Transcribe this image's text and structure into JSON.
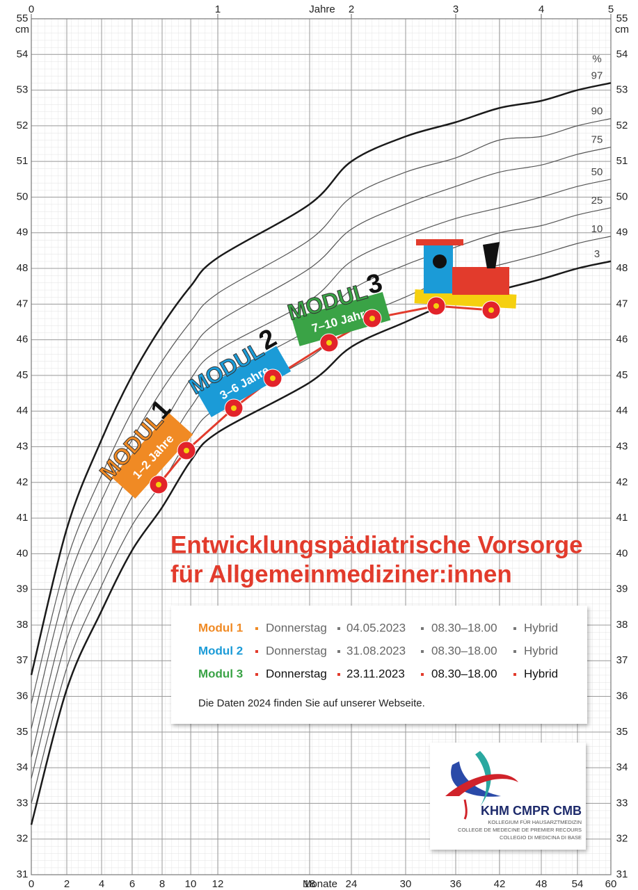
{
  "chart_data": {
    "type": "line",
    "x": [
      0,
      2,
      4,
      6,
      8,
      10,
      12,
      18,
      24,
      30,
      36,
      42,
      48,
      54,
      60
    ],
    "xlim": [
      0,
      60
    ],
    "xticks": [
      0,
      2,
      4,
      6,
      8,
      10,
      12,
      18,
      24,
      30,
      36,
      42,
      48,
      54,
      60
    ],
    "xlabel": "Monate",
    "x2lim": [
      0,
      5
    ],
    "x2ticks": [
      0,
      1,
      2,
      3,
      4,
      5
    ],
    "x2label": "Jahre",
    "ylim": [
      31,
      55
    ],
    "yticks": [
      31,
      32,
      33,
      34,
      35,
      36,
      37,
      38,
      39,
      40,
      41,
      42,
      43,
      44,
      45,
      46,
      47,
      48,
      49,
      50,
      51,
      52,
      53,
      54,
      55
    ],
    "yunit": "cm",
    "percent_label": "%",
    "grid": true,
    "series": [
      {
        "name": "3",
        "color": "#1a1a1a",
        "width": 2.5,
        "values": [
          32.4,
          36.2,
          38.4,
          40.1,
          41.3,
          42.6,
          43.4,
          44.8,
          45.8,
          46.5,
          47.1,
          47.4,
          47.7,
          48.0,
          48.2
        ]
      },
      {
        "name": "10",
        "color": "#555555",
        "width": 1.2,
        "values": [
          33.0,
          36.8,
          39.1,
          40.8,
          42.0,
          43.3,
          44.1,
          45.5,
          46.5,
          47.2,
          47.8,
          48.1,
          48.4,
          48.7,
          48.9
        ]
      },
      {
        "name": "25",
        "color": "#555555",
        "width": 1.2,
        "values": [
          33.7,
          37.6,
          39.8,
          41.6,
          42.8,
          44.1,
          44.9,
          46.3,
          47.4,
          48.1,
          48.6,
          49.0,
          49.2,
          49.5,
          49.7
        ]
      },
      {
        "name": "50",
        "color": "#555555",
        "width": 1.2,
        "values": [
          34.3,
          38.3,
          40.6,
          42.4,
          43.6,
          44.9,
          45.7,
          47.1,
          48.2,
          48.9,
          49.4,
          49.7,
          50.0,
          50.3,
          50.5
        ]
      },
      {
        "name": "75",
        "color": "#555555",
        "width": 1.2,
        "values": [
          35.1,
          39.1,
          41.5,
          43.2,
          44.6,
          45.7,
          46.5,
          48.0,
          49.1,
          49.8,
          50.3,
          50.7,
          50.9,
          51.2,
          51.4
        ]
      },
      {
        "name": "90",
        "color": "#555555",
        "width": 1.2,
        "values": [
          35.8,
          39.8,
          42.2,
          44.0,
          45.4,
          46.5,
          47.3,
          48.8,
          50.0,
          50.7,
          51.1,
          51.6,
          51.7,
          52.0,
          52.2
        ]
      },
      {
        "name": "97",
        "color": "#1a1a1a",
        "width": 2.5,
        "values": [
          36.6,
          40.7,
          43.2,
          45.0,
          46.4,
          47.5,
          48.3,
          49.8,
          51.0,
          51.7,
          52.1,
          52.5,
          52.7,
          53.0,
          53.2
        ]
      }
    ]
  },
  "train": {
    "wagons": [
      {
        "name": "MODUL",
        "number": "1",
        "ages": "1–2 Jahre"
      },
      {
        "name": "MODUL",
        "number": "2",
        "ages": "3–6 Jahre"
      },
      {
        "name": "MODUL",
        "number": "3",
        "ages": "7–10 Jahre"
      }
    ]
  },
  "poster": {
    "title_lines": [
      "Entwicklungspädiatrische Vorsorge",
      "für Allgemeinmediziner:innen"
    ],
    "schedule": [
      {
        "module": "Modul 1",
        "day": "Donnerstag",
        "date": "04.05.2023",
        "time": "08.30–18.00",
        "mode": "Hybrid"
      },
      {
        "module": "Modul 2",
        "day": "Donnerstag",
        "date": "31.08.2023",
        "time": "08.30–18.00",
        "mode": "Hybrid"
      },
      {
        "module": "Modul 3",
        "day": "Donnerstag",
        "date": "23.11.2023",
        "time": "08.30–18.00",
        "mode": "Hybrid"
      }
    ],
    "note": "Die Daten 2024 finden Sie auf unserer Webseite.",
    "logo": {
      "name": "KHM CMPR CMB",
      "lines": [
        "KOLLEGIUM FÜR HAUSARZTMEDIZIN",
        "COLLEGE DE MEDECINE DE PREMIER RECOURS",
        "COLLEGIO DI MEDICINA DI BASE"
      ]
    }
  }
}
